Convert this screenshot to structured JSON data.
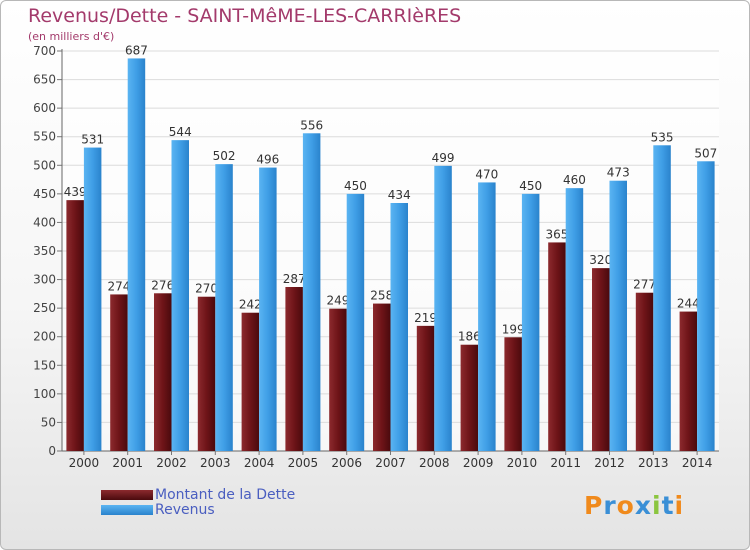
{
  "header": {
    "title": "Revenus/Dette - SAINT-MêME-LES-CARRIèRES",
    "subtitle": "(en milliers d'€)"
  },
  "colors": {
    "dette": "#7a1f24",
    "revenus": "#3f9ee6",
    "title": "#a33a6b",
    "legend_text": "#4a5ec0",
    "grid": "#dcdcdc"
  },
  "chart_data": {
    "type": "bar",
    "title": "Revenus/Dette - SAINT-MêME-LES-CARRIèRES",
    "ylabel": "(en milliers d'€)",
    "xlabel": "",
    "categories": [
      "2000",
      "2001",
      "2002",
      "2003",
      "2004",
      "2005",
      "2006",
      "2007",
      "2008",
      "2009",
      "2010",
      "2011",
      "2012",
      "2013",
      "2014"
    ],
    "ylim": [
      0,
      700
    ],
    "yticks": [
      0,
      50,
      100,
      150,
      200,
      250,
      300,
      350,
      400,
      450,
      500,
      550,
      600,
      650,
      700
    ],
    "grid": true,
    "legend_position": "bottom-left",
    "series": [
      {
        "name": "Montant de la Dette",
        "values": [
          439,
          274,
          276,
          270,
          242,
          287,
          249,
          258,
          219,
          186,
          199,
          365,
          320,
          277,
          244
        ]
      },
      {
        "name": "Revenus",
        "values": [
          531,
          687,
          544,
          502,
          496,
          556,
          450,
          434,
          499,
          470,
          450,
          460,
          473,
          535,
          507
        ]
      }
    ]
  },
  "legend": {
    "dette_label": "Montant de la Dette",
    "revenus_label": "Revenus"
  },
  "logo": {
    "letters": [
      {
        "ch": "P",
        "color": "#f08a1c"
      },
      {
        "ch": "r",
        "color": "#3a8fd6"
      },
      {
        "ch": "o",
        "color": "#f08a1c"
      },
      {
        "ch": "x",
        "color": "#3a8fd6"
      },
      {
        "ch": "i",
        "color": "#8bc53f"
      },
      {
        "ch": "t",
        "color": "#3a8fd6"
      },
      {
        "ch": "i",
        "color": "#f08a1c"
      }
    ]
  }
}
